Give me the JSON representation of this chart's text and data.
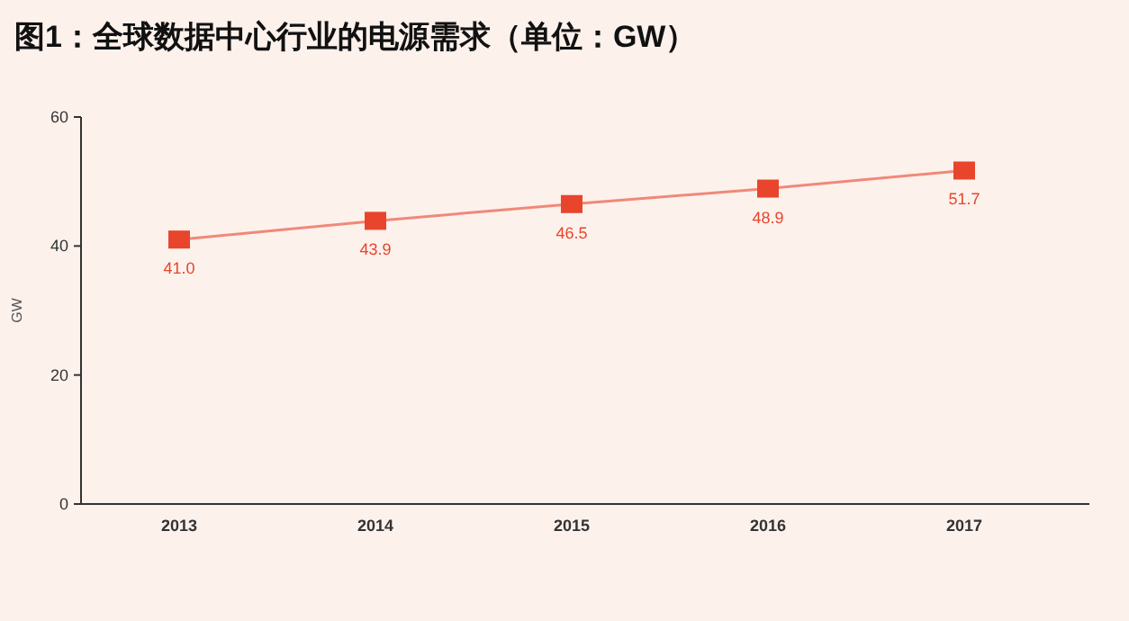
{
  "chart_data": {
    "type": "line",
    "title": "图1：全球数据中心行业的电源需求（单位：GW）",
    "ylabel": "GW",
    "categories": [
      "2013",
      "2014",
      "2015",
      "2016",
      "2017"
    ],
    "series": [
      {
        "color": "#e8452c",
        "values": [
          41.0,
          43.9,
          46.5,
          48.9,
          51.7
        ],
        "value_labels": [
          "41.0",
          "43.9",
          "46.5",
          "48.9",
          "51.7"
        ]
      }
    ],
    "ylim": [
      0,
      60
    ],
    "yticks": [
      0,
      20,
      40,
      60
    ],
    "marker": "square"
  }
}
